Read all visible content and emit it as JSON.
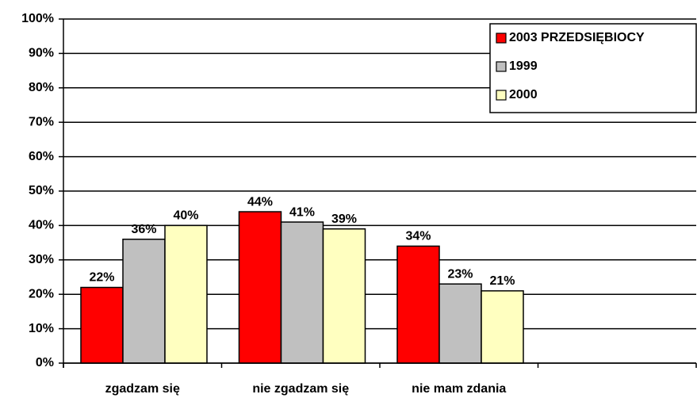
{
  "chart_data": {
    "type": "bar",
    "categories": [
      "zgadzam się",
      "nie zgadzam się",
      "nie mam zdania",
      null
    ],
    "series": [
      {
        "name": "2003 PRZEDSIĘBIOCY",
        "color": "#ff0000",
        "values": [
          22,
          44,
          34,
          null
        ],
        "value_labels": [
          "22%",
          "44%",
          "34%",
          null
        ]
      },
      {
        "name": "1999",
        "color": "#c0c0c0",
        "values": [
          36,
          41,
          23,
          null
        ],
        "value_labels": [
          "36%",
          "41%",
          "23%",
          null
        ]
      },
      {
        "name": "2000",
        "color": "#ffffc0",
        "values": [
          40,
          39,
          21,
          null
        ],
        "value_labels": [
          "40%",
          "39%",
          "21%",
          null
        ]
      }
    ],
    "ylim": [
      0,
      100
    ],
    "yticks": [
      {
        "value": 0,
        "label": "0%"
      },
      {
        "value": 10,
        "label": "10%"
      },
      {
        "value": 20,
        "label": "20%"
      },
      {
        "value": 30,
        "label": "30%"
      },
      {
        "value": 40,
        "label": "40%"
      },
      {
        "value": 50,
        "label": "50%"
      },
      {
        "value": 60,
        "label": "60%"
      },
      {
        "value": 70,
        "label": "70%"
      },
      {
        "value": 80,
        "label": "80%"
      },
      {
        "value": 90,
        "label": "90%"
      },
      {
        "value": 100,
        "label": "100%"
      }
    ],
    "grid": true,
    "legend": "top-right"
  }
}
